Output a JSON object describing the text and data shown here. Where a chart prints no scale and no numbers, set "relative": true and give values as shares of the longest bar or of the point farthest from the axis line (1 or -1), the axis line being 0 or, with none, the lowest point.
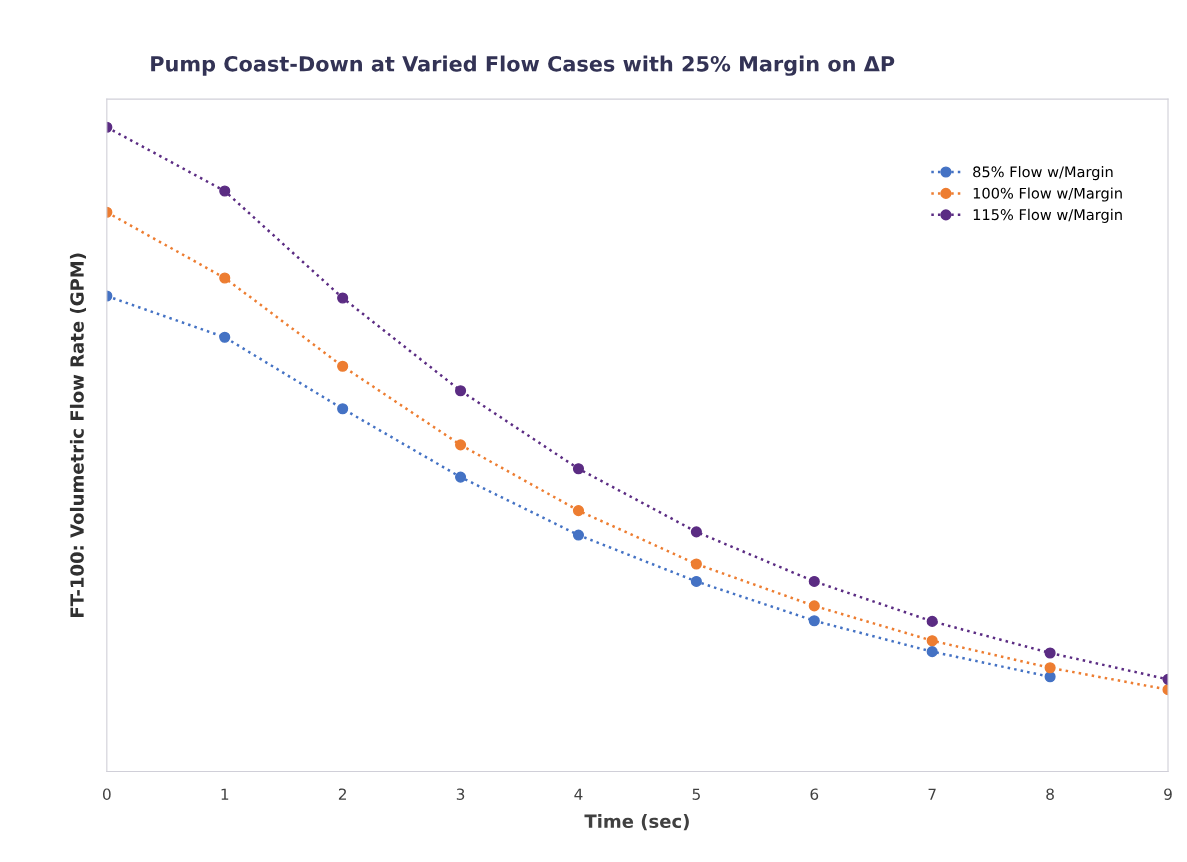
{
  "chart_data": {
    "type": "line",
    "title": "Pump Coast-Down at Varied Flow Cases with 25% Margin on ΔP",
    "xlabel": "Time (sec)",
    "ylabel": "FT-100: Volumetric Flow Rate (GPM)",
    "relative": true,
    "x": [
      0,
      1,
      2,
      3,
      4,
      5,
      6,
      7,
      8,
      9
    ],
    "xlim": [
      0,
      9
    ],
    "xticks": [
      0,
      1,
      2,
      3,
      4,
      5,
      6,
      7,
      8,
      9
    ],
    "series": [
      {
        "name": "85% Flow w/Margin",
        "color": "#4472c4",
        "values": [
          0.738,
          0.674,
          0.563,
          0.457,
          0.367,
          0.295,
          0.234,
          0.186,
          0.147,
          null
        ]
      },
      {
        "name": "100% Flow w/Margin",
        "color": "#ed7d31",
        "values": [
          0.868,
          0.766,
          0.629,
          0.507,
          0.405,
          0.322,
          0.257,
          0.203,
          0.161,
          0.127
        ]
      },
      {
        "name": "115% Flow w/Margin",
        "color": "#5b2c83",
        "values": [
          1.0,
          0.901,
          0.735,
          0.591,
          0.47,
          0.372,
          0.295,
          0.233,
          0.184,
          0.143
        ]
      }
    ],
    "marker": "circle",
    "line_style": "dotted",
    "grid": false,
    "legend": "top right"
  }
}
